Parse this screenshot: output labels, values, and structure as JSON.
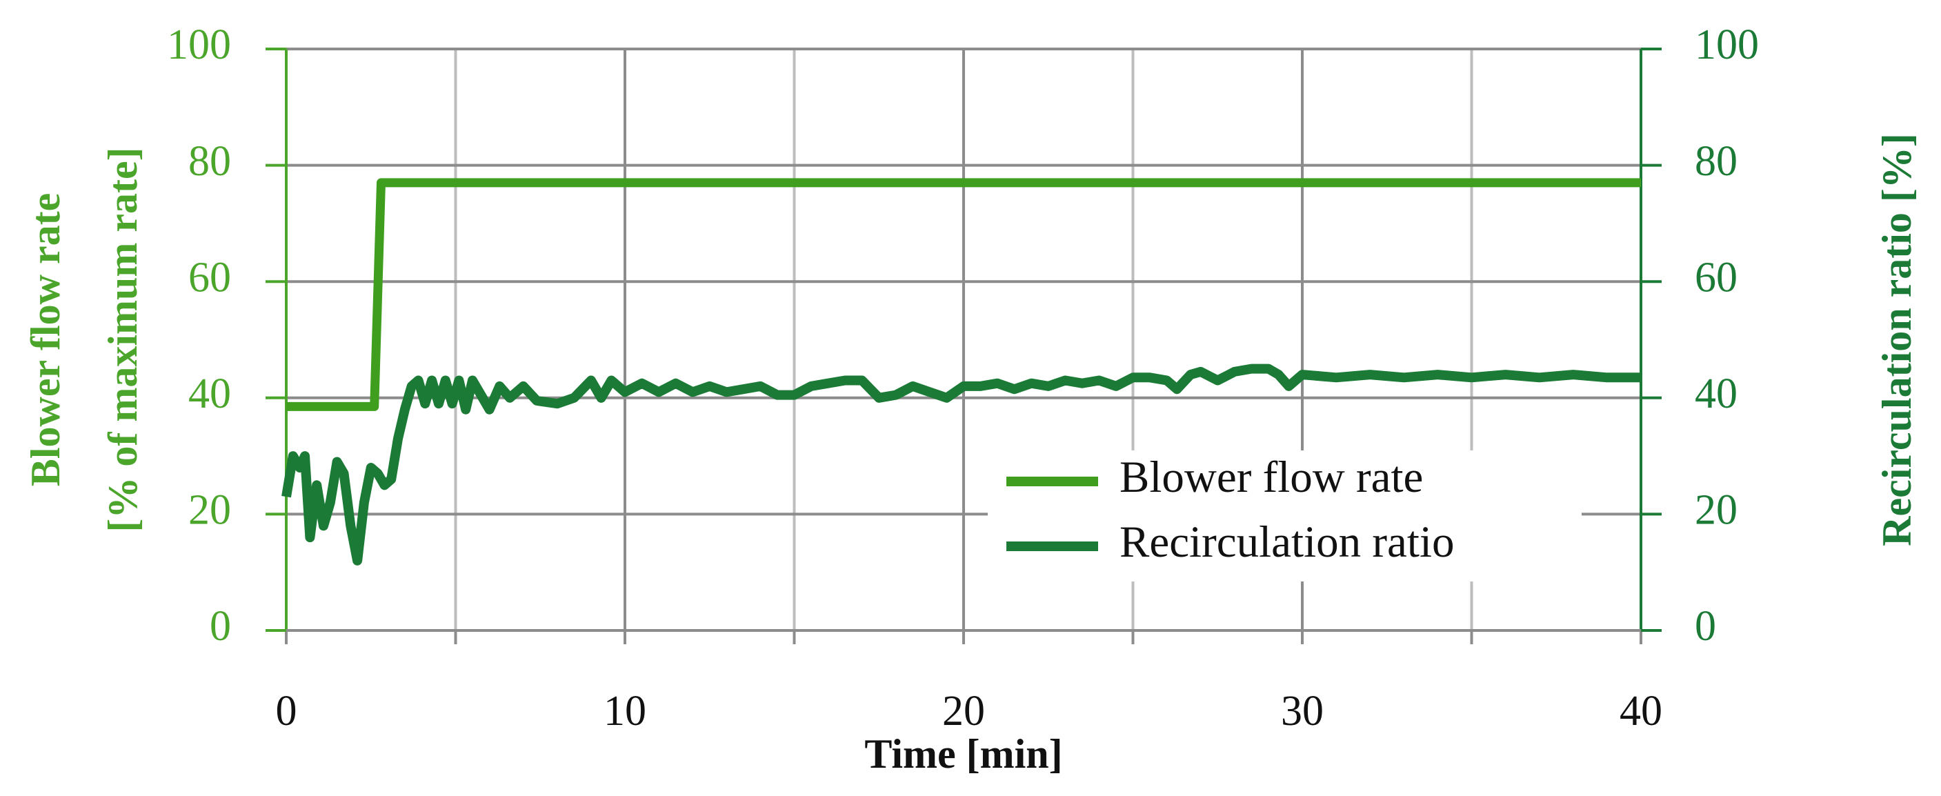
{
  "chart_data": {
    "type": "line",
    "xlabel": "Time [min]",
    "ylabel": [
      "Blower flow rate",
      "[% of maximum rate]"
    ],
    "y2label": "Recirculation ratio [%]",
    "xlim": [
      0,
      40
    ],
    "xticks": [
      0,
      10,
      20,
      30,
      40
    ],
    "xminor_ticks": [
      5,
      15,
      25,
      35
    ],
    "ylim": [
      0,
      100
    ],
    "yticks": [
      0,
      20,
      40,
      60,
      80,
      100
    ],
    "y2lim": [
      0,
      100
    ],
    "y2ticks": [
      0,
      20,
      40,
      60,
      80,
      100
    ],
    "grid": true,
    "legend": "lower right",
    "ycolor": "#4aa52a",
    "y2color": "#1b7a35",
    "series": [
      {
        "name": "Blower flow rate",
        "color": "#3f9e1d",
        "x": [
          0,
          2.6,
          2.8,
          40
        ],
        "values": [
          38.5,
          38.5,
          77,
          77
        ]
      },
      {
        "name": "Recirculation ratio",
        "color": "#1b7a35",
        "axis": "y2",
        "x": [
          0,
          0.2,
          0.4,
          0.55,
          0.7,
          0.9,
          1.1,
          1.3,
          1.5,
          1.7,
          1.9,
          2.1,
          2.3,
          2.5,
          2.7,
          2.9,
          3.1,
          3.3,
          3.5,
          3.7,
          3.9,
          4.1,
          4.3,
          4.5,
          4.7,
          4.9,
          5.1,
          5.3,
          5.5,
          5.8,
          6.0,
          6.3,
          6.6,
          7.0,
          7.4,
          8,
          8.5,
          9,
          9.3,
          9.6,
          10,
          10.5,
          11,
          11.5,
          12,
          12.5,
          13,
          13.5,
          14,
          14.5,
          15,
          15.5,
          16,
          16.5,
          17,
          17.5,
          18,
          18.5,
          19,
          19.5,
          20,
          20.5,
          21,
          21.5,
          22,
          22.5,
          23,
          23.5,
          24,
          24.5,
          25,
          25.5,
          26,
          26.3,
          26.7,
          27,
          27.5,
          28,
          28.5,
          29,
          29.3,
          29.6,
          30,
          31,
          32,
          33,
          34,
          35,
          36,
          37,
          38,
          39,
          40
        ],
        "values": [
          23,
          30,
          28,
          30,
          16,
          25,
          18,
          22,
          29,
          27,
          18,
          12,
          22,
          28,
          27,
          25,
          26,
          33,
          38,
          42,
          43,
          39,
          43,
          39,
          43,
          39,
          43,
          38,
          43,
          40,
          38,
          42,
          40,
          42,
          39.5,
          39,
          40,
          43,
          40,
          43,
          41,
          42.5,
          41,
          42.5,
          41,
          42,
          41,
          41.5,
          42,
          40.5,
          40.5,
          42,
          42.5,
          43,
          43,
          40,
          40.5,
          42,
          41,
          40,
          42,
          42,
          42.5,
          41.5,
          42.5,
          42,
          43,
          42.5,
          43,
          42,
          43.5,
          43.5,
          43,
          41.5,
          44,
          44.5,
          43,
          44.5,
          45,
          45,
          44,
          42,
          44,
          43.5,
          44,
          43.5,
          44,
          43.5,
          44,
          43.5,
          44,
          43.5,
          43.5
        ]
      }
    ]
  }
}
